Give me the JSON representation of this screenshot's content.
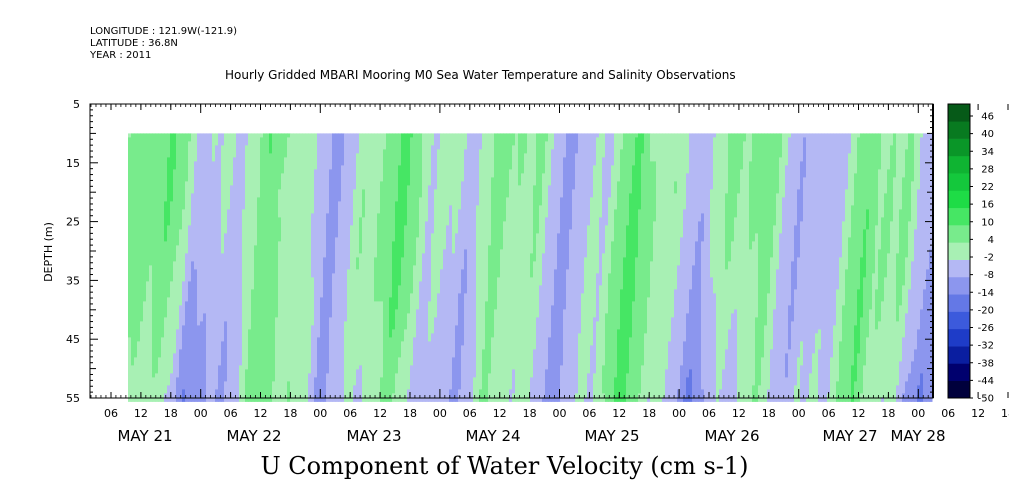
{
  "header": {
    "longitude": "LONGITUDE : 121.9W(-121.9)",
    "latitude": "LATITUDE : 36.8N",
    "year": "YEAR : 2011",
    "title": "Hourly Gridded MBARI Mooring M0 Sea Water Temperature and Salinity Observations",
    "bottom_title": "U Component of Water Velocity (cm s-1)"
  },
  "chart_data": {
    "type": "heatmap",
    "title": "Hourly Gridded MBARI Mooring M0 Sea Water Temperature and Salinity Observations",
    "xlabel": "",
    "ylabel": "DEPTH (m)",
    "ylim": [
      55,
      5
    ],
    "y_ticks": [
      5,
      15,
      25,
      35,
      45,
      55
    ],
    "x_hour_ticks": [
      "06",
      "12",
      "18",
      "00",
      "06",
      "12",
      "18",
      "00",
      "06",
      "12",
      "18",
      "00",
      "06",
      "12",
      "18",
      "00",
      "06",
      "12",
      "18",
      "00",
      "06",
      "12",
      "18",
      "00",
      "06",
      "12",
      "18",
      "00",
      "06",
      "12",
      "18",
      "00"
    ],
    "x_day_labels": [
      "MAY 21",
      "MAY 22",
      "MAY 23",
      "MAY 24",
      "MAY 25",
      "MAY 26",
      "MAY 27",
      "MAY 28"
    ],
    "colorbar": {
      "ticks": [
        46,
        40,
        34,
        28,
        22,
        16,
        10,
        4,
        -2,
        -8,
        -14,
        -20,
        -26,
        -32,
        -38,
        -44,
        -50
      ],
      "range": [
        -50,
        50
      ],
      "colors": [
        "#00003c",
        "#00006e",
        "#0a1ea0",
        "#1e3cc8",
        "#3c5adc",
        "#6478e6",
        "#8c96ee",
        "#b4b8f4",
        "#a8f0b4",
        "#78eb8c",
        "#46e664",
        "#1edc46",
        "#14c83c",
        "#0fb432",
        "#0a9628",
        "#087a20",
        "#065a18"
      ]
    },
    "depth_range_data": [
      10,
      55
    ],
    "day_start_x_fraction": 0.034,
    "u_columns_sample_note": ""
  }
}
